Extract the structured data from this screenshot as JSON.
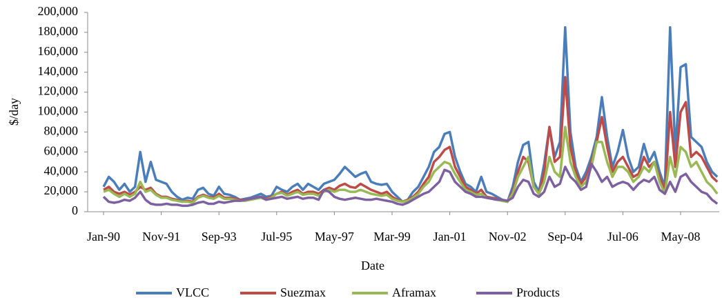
{
  "chart_data": {
    "type": "line",
    "x_label": "Date",
    "y_label": "$/day",
    "categories": [
      "Jan-90",
      null,
      null,
      null,
      null,
      null,
      null,
      null,
      null,
      null,
      null,
      "Nov-91",
      null,
      null,
      null,
      null,
      null,
      null,
      null,
      null,
      null,
      null,
      "Sep-93",
      null,
      null,
      null,
      null,
      null,
      null,
      null,
      null,
      null,
      null,
      "Jul-95",
      null,
      null,
      null,
      null,
      null,
      null,
      null,
      null,
      null,
      null,
      "May-97",
      null,
      null,
      null,
      null,
      null,
      null,
      null,
      null,
      null,
      null,
      "Mar-99",
      null,
      null,
      null,
      null,
      null,
      null,
      null,
      null,
      null,
      null,
      "Jan-01",
      null,
      null,
      null,
      null,
      null,
      null,
      null,
      null,
      null,
      null,
      "Nov-02",
      null,
      null,
      null,
      null,
      null,
      null,
      null,
      null,
      null,
      null,
      "Sep-04",
      null,
      null,
      null,
      null,
      null,
      null,
      null,
      null,
      null,
      null,
      "Jul-06",
      null,
      null,
      null,
      null,
      null,
      null,
      null,
      null,
      null,
      null,
      "May-08",
      null,
      null,
      null,
      null,
      null,
      null,
      null
    ],
    "series": [
      {
        "name": "VLCC",
        "color": "#4a7ebb",
        "values": [
          25000,
          35000,
          30000,
          22000,
          28000,
          20000,
          25000,
          60000,
          30000,
          50000,
          32000,
          30000,
          28000,
          20000,
          15000,
          12000,
          14000,
          13000,
          22000,
          24000,
          18000,
          16000,
          25000,
          18000,
          17000,
          15000,
          12000,
          13000,
          14000,
          16000,
          18000,
          15000,
          16000,
          25000,
          22000,
          20000,
          25000,
          28000,
          22000,
          28000,
          25000,
          22000,
          28000,
          30000,
          32000,
          38000,
          45000,
          40000,
          35000,
          38000,
          40000,
          30000,
          28000,
          27000,
          28000,
          20000,
          15000,
          10000,
          12000,
          20000,
          25000,
          35000,
          45000,
          60000,
          65000,
          78000,
          80000,
          55000,
          40000,
          28000,
          25000,
          20000,
          35000,
          20000,
          18000,
          15000,
          12000,
          10000,
          25000,
          50000,
          67000,
          70000,
          30000,
          20000,
          48000,
          85000,
          55000,
          70000,
          185000,
          80000,
          45000,
          30000,
          40000,
          55000,
          75000,
          115000,
          75000,
          45000,
          60000,
          82000,
          55000,
          40000,
          45000,
          68000,
          50000,
          60000,
          40000,
          25000,
          185000,
          60000,
          145000,
          148000,
          75000,
          70000,
          65000,
          50000,
          40000,
          35000
        ]
      },
      {
        "name": "Suezmax",
        "color": "#be4b48",
        "values": [
          22000,
          25000,
          20000,
          18000,
          20000,
          17000,
          20000,
          25000,
          22000,
          24000,
          18000,
          15000,
          15000,
          13000,
          12000,
          10000,
          11000,
          10000,
          15000,
          17000,
          15000,
          14000,
          18000,
          14000,
          14000,
          13000,
          12000,
          12000,
          13000,
          14000,
          15000,
          13000,
          15000,
          18000,
          20000,
          17000,
          20000,
          22000,
          18000,
          20000,
          20000,
          18000,
          22000,
          24000,
          22000,
          26000,
          28000,
          25000,
          24000,
          28000,
          25000,
          22000,
          20000,
          18000,
          20000,
          15000,
          12000,
          10000,
          12000,
          15000,
          20000,
          28000,
          35000,
          50000,
          55000,
          62000,
          65000,
          45000,
          35000,
          25000,
          22000,
          18000,
          22000,
          15000,
          14000,
          13000,
          11000,
          10000,
          20000,
          40000,
          55000,
          50000,
          25000,
          18000,
          40000,
          85000,
          50000,
          55000,
          135000,
          65000,
          40000,
          28000,
          35000,
          50000,
          70000,
          95000,
          65000,
          40000,
          50000,
          55000,
          45000,
          35000,
          38000,
          55000,
          45000,
          50000,
          35000,
          20000,
          100000,
          45000,
          100000,
          110000,
          55000,
          60000,
          55000,
          45000,
          35000,
          30000
        ]
      },
      {
        "name": "Aframax",
        "color": "#98b954",
        "values": [
          20000,
          22000,
          18000,
          15000,
          18000,
          15000,
          18000,
          30000,
          20000,
          22000,
          17000,
          14000,
          14000,
          12000,
          11000,
          10000,
          10000,
          9000,
          14000,
          16000,
          14000,
          13000,
          16000,
          13000,
          13000,
          12000,
          11000,
          11000,
          12000,
          13000,
          14000,
          12000,
          14000,
          18000,
          19000,
          16000,
          18000,
          20000,
          17000,
          18000,
          18000,
          16000,
          20000,
          22000,
          20000,
          22000,
          22000,
          20000,
          20000,
          22000,
          20000,
          18000,
          17000,
          16000,
          17000,
          13000,
          11000,
          10000,
          11000,
          14000,
          18000,
          25000,
          30000,
          40000,
          45000,
          50000,
          48000,
          38000,
          30000,
          22000,
          20000,
          17000,
          18000,
          14000,
          13000,
          12000,
          11000,
          10000,
          18000,
          35000,
          45000,
          55000,
          25000,
          18000,
          30000,
          55000,
          40000,
          35000,
          85000,
          50000,
          35000,
          25000,
          30000,
          45000,
          70000,
          70000,
          50000,
          35000,
          45000,
          45000,
          40000,
          30000,
          35000,
          45000,
          40000,
          50000,
          30000,
          18000,
          55000,
          35000,
          65000,
          60000,
          45000,
          50000,
          40000,
          30000,
          25000,
          18000
        ]
      },
      {
        "name": "Products",
        "color": "#7d60a0",
        "values": [
          15000,
          10000,
          9000,
          10000,
          12000,
          11000,
          14000,
          20000,
          12000,
          8000,
          7000,
          7000,
          8000,
          7000,
          7000,
          6000,
          6000,
          7000,
          9000,
          10000,
          8000,
          8000,
          10000,
          9000,
          10000,
          11000,
          11000,
          12000,
          13000,
          14000,
          15000,
          12000,
          13000,
          14000,
          15000,
          13000,
          14000,
          15000,
          13000,
          14000,
          14000,
          12000,
          22000,
          20000,
          15000,
          13000,
          12000,
          13000,
          14000,
          13000,
          12000,
          12000,
          13000,
          12000,
          11000,
          10000,
          8000,
          7000,
          9000,
          12000,
          15000,
          18000,
          20000,
          25000,
          30000,
          42000,
          40000,
          30000,
          25000,
          20000,
          18000,
          15000,
          15000,
          14000,
          13000,
          12000,
          12000,
          11000,
          14000,
          25000,
          32000,
          30000,
          18000,
          15000,
          20000,
          35000,
          25000,
          28000,
          45000,
          35000,
          30000,
          22000,
          25000,
          48000,
          40000,
          30000,
          35000,
          25000,
          28000,
          30000,
          28000,
          22000,
          28000,
          32000,
          30000,
          35000,
          22000,
          18000,
          30000,
          20000,
          35000,
          38000,
          30000,
          25000,
          20000,
          18000,
          12000,
          8000
        ]
      }
    ],
    "ylim": [
      0,
      200000
    ],
    "yticks": [
      0,
      {
        "value": 20000,
        "label": "20,000"
      },
      {
        "value": 40000,
        "label": "40,000"
      },
      {
        "value": 60000,
        "label": "60,000"
      },
      {
        "value": 80000,
        "label": "80,000"
      },
      {
        "value": 100000,
        "label": "100,000"
      },
      {
        "value": 120000,
        "label": "120,000"
      },
      {
        "value": 140000,
        "label": "140,000"
      },
      {
        "value": 160000,
        "label": "160,000"
      },
      {
        "value": 180000,
        "label": "180,000"
      },
      {
        "value": 200000,
        "label": "200,000"
      }
    ],
    "legend": "bottom",
    "grid": false
  }
}
